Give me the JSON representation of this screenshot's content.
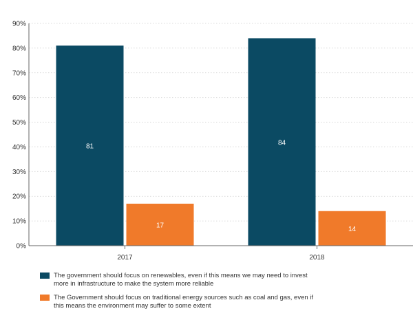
{
  "chart_data": {
    "type": "bar",
    "categories": [
      "2017",
      "2018"
    ],
    "series": [
      {
        "name": "The government should focus on renewables, even if this means we may need to invest more in infrastructure to make the system more reliable",
        "values": [
          81,
          84
        ],
        "color": "#0b4a63"
      },
      {
        "name": "The Government should focus on traditional energy sources such as coal and gas, even if this means the environment may suffer to some extent",
        "values": [
          17,
          14
        ],
        "color": "#f07a2a"
      }
    ],
    "data_labels": [
      [
        "81",
        "84"
      ],
      [
        "17",
        "14"
      ]
    ],
    "ylim": [
      0,
      90
    ],
    "yticks": [
      "0%",
      "10%",
      "20%",
      "30%",
      "40%",
      "50%",
      "60%",
      "70%",
      "80%",
      "90%"
    ],
    "grid": true,
    "legend": "bottom",
    "title": "",
    "xlabel": "",
    "ylabel": ""
  }
}
